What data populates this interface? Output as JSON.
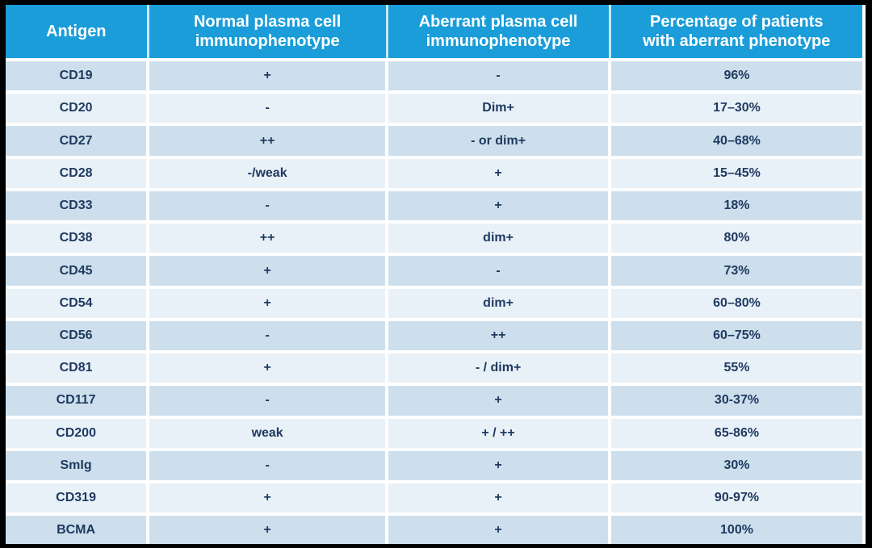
{
  "colors": {
    "frame": "#000000",
    "header_bg": "#1a9dd9",
    "header_text": "#ffffff",
    "header_divider": "#c9eaf8",
    "row_dark": "#cddfec",
    "row_light": "#e9f1f8",
    "body_text": "#1f3a60"
  },
  "table": {
    "columns": [
      {
        "key": "antigen",
        "label": "Antigen",
        "width_pct": 16.6
      },
      {
        "key": "normal",
        "label": "Normal plasma cell\nimmunophenotype",
        "width_pct": 27.9
      },
      {
        "key": "aberrant",
        "label": "Aberrant plasma cell\nimmunophenotype",
        "width_pct": 26.0
      },
      {
        "key": "percentage",
        "label": "Percentage of patients\nwith aberrant phenotype",
        "width_pct": 29.5
      }
    ],
    "rows": [
      {
        "antigen": "CD19",
        "normal": "+",
        "aberrant": "-",
        "percentage": "96%"
      },
      {
        "antigen": "CD20",
        "normal": "-",
        "aberrant": "Dim+",
        "percentage": "17–30%"
      },
      {
        "antigen": "CD27",
        "normal": "++",
        "aberrant": "- or dim+",
        "percentage": "40–68%"
      },
      {
        "antigen": "CD28",
        "normal": "-/weak",
        "aberrant": "+",
        "percentage": "15–45%"
      },
      {
        "antigen": "CD33",
        "normal": "-",
        "aberrant": "+",
        "percentage": "18%"
      },
      {
        "antigen": "CD38",
        "normal": "++",
        "aberrant": "dim+",
        "percentage": "80%"
      },
      {
        "antigen": "CD45",
        "normal": "+",
        "aberrant": "-",
        "percentage": "73%"
      },
      {
        "antigen": "CD54",
        "normal": "+",
        "aberrant": "dim+",
        "percentage": "60–80%"
      },
      {
        "antigen": "CD56",
        "normal": "-",
        "aberrant": "++",
        "percentage": "60–75%"
      },
      {
        "antigen": "CD81",
        "normal": "+",
        "aberrant": "- / dim+",
        "percentage": "55%"
      },
      {
        "antigen": "CD117",
        "normal": "-",
        "aberrant": "+",
        "percentage": "30-37%"
      },
      {
        "antigen": "CD200",
        "normal": "weak",
        "aberrant": "+ / ++",
        "percentage": "65-86%"
      },
      {
        "antigen": "SmIg",
        "normal": "-",
        "aberrant": "+",
        "percentage": "30%"
      },
      {
        "antigen": "CD319",
        "normal": "+",
        "aberrant": "+",
        "percentage": "90-97%"
      },
      {
        "antigen": "BCMA",
        "normal": "+",
        "aberrant": "+",
        "percentage": "100%"
      }
    ]
  }
}
